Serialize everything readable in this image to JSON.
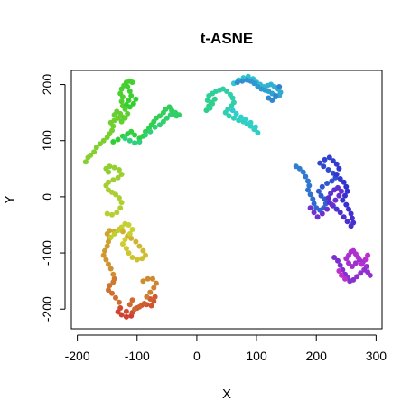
{
  "chart_data": {
    "type": "scatter",
    "title": "t-ASNE",
    "xlabel": "X",
    "ylabel": "Y",
    "xlim": [
      -210,
      310
    ],
    "ylim": [
      -235,
      225
    ],
    "x_ticks": [
      -200,
      -100,
      0,
      100,
      200,
      300
    ],
    "y_ticks": [
      -200,
      -100,
      0,
      100,
      200
    ],
    "x_tick_labels": [
      "-200",
      "-100",
      "0",
      "100",
      "200",
      "300"
    ],
    "y_tick_labels": [
      "-200",
      "-100",
      "0",
      "100",
      "200"
    ],
    "grid": false,
    "legend": "none",
    "color_scale": "rainbow hue gradient along point order (red → yellow → green → cyan → blue → purple)",
    "points": [
      [
        -110,
        -212
      ],
      [
        -118,
        -214
      ],
      [
        -126,
        -210
      ],
      [
        -132,
        -205
      ],
      [
        -128,
        -198
      ],
      [
        -118,
        -204
      ],
      [
        -108,
        -206
      ],
      [
        -100,
        -198
      ],
      [
        -92,
        -193
      ],
      [
        -84,
        -192
      ],
      [
        -76,
        -194
      ],
      [
        -72,
        -186
      ],
      [
        -70,
        -178
      ],
      [
        -78,
        -182
      ],
      [
        -88,
        -190
      ],
      [
        -96,
        -196
      ],
      [
        -104,
        -200
      ],
      [
        -112,
        -192
      ],
      [
        -108,
        -184
      ],
      [
        -130,
        -188
      ],
      [
        -136,
        -180
      ],
      [
        -142,
        -172
      ],
      [
        -148,
        -166
      ],
      [
        -146,
        -158
      ],
      [
        -140,
        -152
      ],
      [
        -138,
        -146
      ],
      [
        -84,
        -178
      ],
      [
        -78,
        -170
      ],
      [
        -72,
        -162
      ],
      [
        -68,
        -154
      ],
      [
        -74,
        -146
      ],
      [
        -82,
        -146
      ],
      [
        -90,
        -150
      ],
      [
        -140,
        -138
      ],
      [
        -144,
        -128
      ],
      [
        -148,
        -120
      ],
      [
        -152,
        -112
      ],
      [
        -156,
        -104
      ],
      [
        -154,
        -96
      ],
      [
        -150,
        -88
      ],
      [
        -148,
        -80
      ],
      [
        -146,
        -74
      ],
      [
        -150,
        -66
      ],
      [
        -146,
        -60
      ],
      [
        -138,
        -62
      ],
      [
        -130,
        -58
      ],
      [
        -124,
        -62
      ],
      [
        -116,
        -70
      ],
      [
        -110,
        -74
      ],
      [
        -102,
        -80
      ],
      [
        -96,
        -88
      ],
      [
        -90,
        -96
      ],
      [
        -86,
        -104
      ],
      [
        -92,
        -110
      ],
      [
        -100,
        -112
      ],
      [
        -108,
        -108
      ],
      [
        -114,
        -100
      ],
      [
        -118,
        -92
      ],
      [
        -124,
        -84
      ],
      [
        -120,
        -76
      ],
      [
        -112,
        -66
      ],
      [
        -108,
        -58
      ],
      [
        -114,
        -50
      ],
      [
        -120,
        -48
      ],
      [
        -126,
        -54
      ],
      [
        -132,
        -60
      ],
      [
        -138,
        -66
      ],
      [
        -144,
        -72
      ],
      [
        -150,
        -30
      ],
      [
        -142,
        -32
      ],
      [
        -134,
        -28
      ],
      [
        -128,
        -20
      ],
      [
        -126,
        -10
      ],
      [
        -130,
        -2
      ],
      [
        -136,
        4
      ],
      [
        -142,
        8
      ],
      [
        -148,
        12
      ],
      [
        -152,
        20
      ],
      [
        -148,
        26
      ],
      [
        -140,
        30
      ],
      [
        -132,
        34
      ],
      [
        -126,
        40
      ],
      [
        -130,
        48
      ],
      [
        -138,
        52
      ],
      [
        -146,
        54
      ],
      [
        -152,
        50
      ],
      [
        -148,
        44
      ],
      [
        -182,
        70
      ],
      [
        -186,
        62
      ],
      [
        -178,
        74
      ],
      [
        -172,
        80
      ],
      [
        -168,
        88
      ],
      [
        -162,
        94
      ],
      [
        -156,
        100
      ],
      [
        -150,
        106
      ],
      [
        -146,
        112
      ],
      [
        -142,
        118
      ],
      [
        -140,
        126
      ],
      [
        -144,
        132
      ],
      [
        -138,
        136
      ],
      [
        -132,
        140
      ],
      [
        -138,
        146
      ],
      [
        -134,
        152
      ],
      [
        -128,
        148
      ],
      [
        -124,
        142
      ],
      [
        -126,
        134
      ],
      [
        -120,
        140
      ],
      [
        -116,
        148
      ],
      [
        -120,
        156
      ],
      [
        -124,
        162
      ],
      [
        -126,
        170
      ],
      [
        -124,
        178
      ],
      [
        -128,
        184
      ],
      [
        -126,
        192
      ],
      [
        -122,
        198
      ],
      [
        -118,
        204
      ],
      [
        -112,
        206
      ],
      [
        -108,
        204
      ],
      [
        -116,
        196
      ],
      [
        -112,
        188
      ],
      [
        -110,
        180
      ],
      [
        -114,
        172
      ],
      [
        -118,
        164
      ],
      [
        -112,
        160
      ],
      [
        -106,
        166
      ],
      [
        -102,
        174
      ],
      [
        -140,
        98
      ],
      [
        -132,
        102
      ],
      [
        -124,
        108
      ],
      [
        -116,
        112
      ],
      [
        -110,
        116
      ],
      [
        -104,
        110
      ],
      [
        -96,
        104
      ],
      [
        -90,
        108
      ],
      [
        -86,
        116
      ],
      [
        -80,
        122
      ],
      [
        -76,
        128
      ],
      [
        -72,
        134
      ],
      [
        -68,
        140
      ],
      [
        -62,
        144
      ],
      [
        -56,
        150
      ],
      [
        -52,
        156
      ],
      [
        -46,
        160
      ],
      [
        -42,
        154
      ],
      [
        -38,
        148
      ],
      [
        -34,
        144
      ],
      [
        -30,
        146
      ],
      [
        -36,
        150
      ],
      [
        -44,
        146
      ],
      [
        -50,
        140
      ],
      [
        -56,
        134
      ],
      [
        -62,
        128
      ],
      [
        -70,
        124
      ],
      [
        -78,
        116
      ],
      [
        -86,
        110
      ],
      [
        -96,
        98
      ],
      [
        -104,
        96
      ],
      [
        -112,
        100
      ],
      [
        -120,
        104
      ],
      [
        16,
        154
      ],
      [
        20,
        162
      ],
      [
        24,
        168
      ],
      [
        30,
        174
      ],
      [
        26,
        166
      ],
      [
        22,
        158
      ],
      [
        18,
        172
      ],
      [
        20,
        180
      ],
      [
        26,
        184
      ],
      [
        32,
        188
      ],
      [
        38,
        190
      ],
      [
        44,
        192
      ],
      [
        50,
        188
      ],
      [
        56,
        182
      ],
      [
        60,
        176
      ],
      [
        62,
        168
      ],
      [
        58,
        162
      ],
      [
        52,
        156
      ],
      [
        48,
        150
      ],
      [
        54,
        144
      ],
      [
        62,
        140
      ],
      [
        70,
        136
      ],
      [
        78,
        134
      ],
      [
        84,
        130
      ],
      [
        90,
        126
      ],
      [
        96,
        120
      ],
      [
        102,
        114
      ],
      [
        98,
        124
      ],
      [
        90,
        132
      ],
      [
        82,
        138
      ],
      [
        74,
        142
      ],
      [
        66,
        148
      ],
      [
        60,
        154
      ],
      [
        62,
        202
      ],
      [
        70,
        208
      ],
      [
        78,
        212
      ],
      [
        86,
        214
      ],
      [
        94,
        210
      ],
      [
        100,
        204
      ],
      [
        106,
        200
      ],
      [
        112,
        196
      ],
      [
        118,
        198
      ],
      [
        124,
        200
      ],
      [
        130,
        196
      ],
      [
        136,
        192
      ],
      [
        140,
        186
      ],
      [
        138,
        180
      ],
      [
        132,
        178
      ],
      [
        126,
        184
      ],
      [
        120,
        188
      ],
      [
        114,
        190
      ],
      [
        108,
        192
      ],
      [
        102,
        196
      ],
      [
        96,
        202
      ],
      [
        90,
        206
      ],
      [
        84,
        208
      ],
      [
        76,
        206
      ],
      [
        68,
        204
      ],
      [
        120,
        176
      ],
      [
        126,
        172
      ],
      [
        132,
        180
      ],
      [
        138,
        196
      ],
      [
        166,
        54
      ],
      [
        172,
        50
      ],
      [
        178,
        44
      ],
      [
        182,
        36
      ],
      [
        186,
        28
      ],
      [
        188,
        20
      ],
      [
        186,
        12
      ],
      [
        190,
        4
      ],
      [
        194,
        -4
      ],
      [
        196,
        -12
      ],
      [
        200,
        -20
      ],
      [
        206,
        -24
      ],
      [
        212,
        -20
      ],
      [
        216,
        -12
      ],
      [
        214,
        -4
      ],
      [
        208,
        2
      ],
      [
        204,
        10
      ],
      [
        210,
        18
      ],
      [
        218,
        24
      ],
      [
        226,
        28
      ],
      [
        232,
        34
      ],
      [
        228,
        42
      ],
      [
        220,
        48
      ],
      [
        212,
        54
      ],
      [
        206,
        60
      ],
      [
        214,
        66
      ],
      [
        222,
        70
      ],
      [
        228,
        64
      ],
      [
        234,
        58
      ],
      [
        238,
        50
      ],
      [
        234,
        40
      ],
      [
        240,
        32
      ],
      [
        246,
        26
      ],
      [
        250,
        18
      ],
      [
        252,
        10
      ],
      [
        248,
        2
      ],
      [
        244,
        -6
      ],
      [
        250,
        -14
      ],
      [
        254,
        -22
      ],
      [
        258,
        -30
      ],
      [
        260,
        -38
      ],
      [
        262,
        -46
      ],
      [
        258,
        -52
      ],
      [
        252,
        -44
      ],
      [
        246,
        -36
      ],
      [
        240,
        -28
      ],
      [
        234,
        -22
      ],
      [
        228,
        -16
      ],
      [
        222,
        -10
      ],
      [
        220,
        -2
      ],
      [
        224,
        6
      ],
      [
        230,
        12
      ],
      [
        236,
        16
      ],
      [
        242,
        10
      ],
      [
        238,
        2
      ],
      [
        232,
        -6
      ],
      [
        226,
        -14
      ],
      [
        218,
        -22
      ],
      [
        210,
        -30
      ],
      [
        202,
        -36
      ],
      [
        196,
        -28
      ],
      [
        190,
        -20
      ],
      [
        230,
        -108
      ],
      [
        236,
        -114
      ],
      [
        240,
        -122
      ],
      [
        244,
        -130
      ],
      [
        248,
        -138
      ],
      [
        252,
        -144
      ],
      [
        256,
        -150
      ],
      [
        262,
        -148
      ],
      [
        268,
        -142
      ],
      [
        274,
        -136
      ],
      [
        280,
        -130
      ],
      [
        286,
        -134
      ],
      [
        290,
        -140
      ],
      [
        284,
        -124
      ],
      [
        278,
        -116
      ],
      [
        272,
        -112
      ],
      [
        266,
        -118
      ],
      [
        260,
        -124
      ],
      [
        254,
        -118
      ],
      [
        250,
        -110
      ],
      [
        254,
        -104
      ],
      [
        258,
        -98
      ],
      [
        262,
        -96
      ],
      [
        266,
        -102
      ],
      [
        270,
        -108
      ],
      [
        276,
        -120
      ],
      [
        282,
        -112
      ],
      [
        286,
        -104
      ],
      [
        248,
        -146
      ],
      [
        242,
        -140
      ],
      [
        238,
        -132
      ]
    ]
  }
}
